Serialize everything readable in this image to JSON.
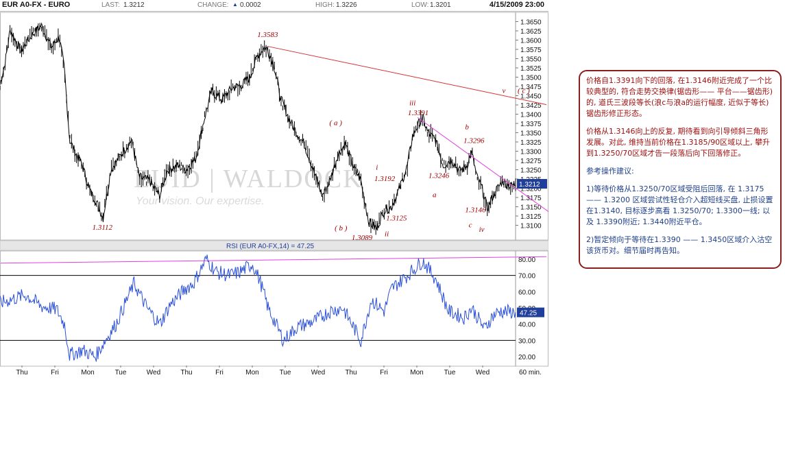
{
  "header": {
    "symbol": "EUR A0-FX - EURO",
    "last_label": "LAST:",
    "last_value": "1.3212",
    "change_label": "CHANGE:",
    "change_value": "0.0002",
    "high_label": "HIGH:",
    "high_value": "1.3226",
    "low_label": "LOW:",
    "low_value": "1.3201",
    "datetime": "4/15/2009 23:00"
  },
  "watermark": {
    "brand": "EUID | WALDOCK",
    "tagline": "Your vision. Our expertise."
  },
  "chart_data": [
    {
      "type": "line",
      "name": "price",
      "yaxis": {
        "min": 1.3075,
        "max": 1.3675,
        "ticks": [
          1.365,
          1.3625,
          1.36,
          1.3575,
          1.355,
          1.3525,
          1.35,
          1.3475,
          1.345,
          1.3425,
          1.34,
          1.3375,
          1.335,
          1.3325,
          1.33,
          1.3275,
          1.325,
          1.3225,
          1.32,
          1.3175,
          1.315,
          1.3125,
          1.31
        ],
        "tick_labels": [
          "1.3650",
          "1.3625",
          "1.3600",
          "1.3575",
          "1.3550",
          "1.3525",
          "1.3500",
          "1.3475",
          "1.3450",
          "1.3425",
          "1.3400",
          "1.3375",
          "1.3350",
          "1.3325",
          "1.3300",
          "1.3275",
          "1.3250",
          "1.3225",
          "1.3200",
          "1.3175",
          "1.3150",
          "1.3125",
          "1.3100"
        ],
        "visible_tick_labels": [
          "1.3650",
          "1.3625",
          "1.3600",
          "1.3575",
          "1.3550",
          "1.3525",
          "1.3500",
          "1.345",
          "1.3425",
          "1.3400",
          "1.3375",
          "1.3350",
          "1.3325",
          "1.3300",
          "1.3275",
          "1.3250",
          "1.3225",
          "1.3200",
          "1.3175",
          "1.3150",
          "1.3125",
          "1.3100"
        ]
      },
      "last_value": 1.3212,
      "last_value_label": "1.3212",
      "trendlines": [
        {
          "from": [
            0.52,
            1.3583
          ],
          "to": [
            1.0,
            1.3448
          ]
        },
        {
          "from": [
            0.81,
            1.3391
          ],
          "to": [
            1.0,
            1.3232
          ]
        }
      ],
      "annotations": [
        {
          "text": "1.3583",
          "x": 0.515,
          "y": 1.3608
        },
        {
          "text": "1.3112",
          "x": 0.195,
          "y": 1.3088
        },
        {
          "text": "( a )",
          "x": 0.655,
          "y": 1.337
        },
        {
          "text": "i",
          "x": 0.745,
          "y": 1.325
        },
        {
          "text": "1.3192",
          "x": 0.742,
          "y": 1.3219
        },
        {
          "text": "( b )",
          "x": 0.665,
          "y": 1.3086
        },
        {
          "text": "1.3089",
          "x": 0.698,
          "y": 1.306
        },
        {
          "text": "1.3125",
          "x": 0.765,
          "y": 1.3113
        },
        {
          "text": "ii",
          "x": 0.762,
          "y": 1.307
        },
        {
          "text": "iii",
          "x": 0.81,
          "y": 1.3424
        },
        {
          "text": "1.3391",
          "x": 0.807,
          "y": 1.3397
        },
        {
          "text": "1.3246",
          "x": 0.847,
          "y": 1.3228
        },
        {
          "text": "a",
          "x": 0.855,
          "y": 1.3176
        },
        {
          "text": "b",
          "x": 0.918,
          "y": 1.3359
        },
        {
          "text": "1.3296",
          "x": 0.915,
          "y": 1.3322
        },
        {
          "text": "1.3146",
          "x": 0.918,
          "y": 1.3135
        },
        {
          "text": "c",
          "x": 0.925,
          "y": 1.3094
        },
        {
          "text": "iv",
          "x": 0.945,
          "y": 1.3082
        },
        {
          "text": "v",
          "x": 0.99,
          "y": 1.3457
        },
        {
          "text": "( c )",
          "x": 1.02,
          "y": 1.3457
        }
      ],
      "x_labels": [
        "Thu",
        "Fri",
        "Mon",
        "Tue",
        "Wed",
        "Thu",
        "Fri",
        "Mon",
        "Tue",
        "Wed",
        "Thu",
        "Fri",
        "Mon",
        "Tue",
        "Wed"
      ],
      "interval_label": "60 min."
    },
    {
      "type": "line",
      "name": "RSI",
      "title": "RSI (EUR A0-FX,14) = 47.25",
      "yaxis": {
        "min": 15,
        "max": 85,
        "ticks": [
          80,
          70,
          60,
          50,
          40,
          30,
          20
        ],
        "tick_labels": [
          "80.00",
          "70.00",
          "60.00",
          "50.00",
          "40.00",
          "30.00",
          "20.00"
        ],
        "reference_lines": [
          70,
          30
        ]
      },
      "last_value": 47.25,
      "last_value_label": "47.25",
      "trendline": {
        "from": [
          0.0,
          77.5
        ],
        "to": [
          1.0,
          81.5
        ]
      },
      "keypoints": [
        {
          "x": 0.0,
          "y": 53
        },
        {
          "x": 0.05,
          "y": 58
        },
        {
          "x": 0.08,
          "y": 51
        },
        {
          "x": 0.11,
          "y": 49
        },
        {
          "x": 0.125,
          "y": 40
        },
        {
          "x": 0.135,
          "y": 21
        },
        {
          "x": 0.16,
          "y": 24
        },
        {
          "x": 0.185,
          "y": 20
        },
        {
          "x": 0.2,
          "y": 28
        },
        {
          "x": 0.225,
          "y": 40
        },
        {
          "x": 0.26,
          "y": 65
        },
        {
          "x": 0.285,
          "y": 50
        },
        {
          "x": 0.31,
          "y": 40
        },
        {
          "x": 0.33,
          "y": 52
        },
        {
          "x": 0.36,
          "y": 62
        },
        {
          "x": 0.375,
          "y": 65
        },
        {
          "x": 0.4,
          "y": 80
        },
        {
          "x": 0.42,
          "y": 72
        },
        {
          "x": 0.445,
          "y": 70
        },
        {
          "x": 0.465,
          "y": 72
        },
        {
          "x": 0.49,
          "y": 77
        },
        {
          "x": 0.505,
          "y": 66
        },
        {
          "x": 0.52,
          "y": 50
        },
        {
          "x": 0.535,
          "y": 40
        },
        {
          "x": 0.55,
          "y": 30
        },
        {
          "x": 0.575,
          "y": 38
        },
        {
          "x": 0.61,
          "y": 42
        },
        {
          "x": 0.64,
          "y": 48
        },
        {
          "x": 0.665,
          "y": 50
        },
        {
          "x": 0.7,
          "y": 30
        },
        {
          "x": 0.72,
          "y": 55
        },
        {
          "x": 0.745,
          "y": 48
        },
        {
          "x": 0.76,
          "y": 62
        },
        {
          "x": 0.79,
          "y": 70
        },
        {
          "x": 0.82,
          "y": 79
        },
        {
          "x": 0.845,
          "y": 68
        },
        {
          "x": 0.87,
          "y": 48
        },
        {
          "x": 0.9,
          "y": 44
        },
        {
          "x": 0.915,
          "y": 50
        },
        {
          "x": 0.94,
          "y": 37
        },
        {
          "x": 0.955,
          "y": 45
        },
        {
          "x": 0.97,
          "y": 48
        },
        {
          "x": 1.0,
          "y": 47.25
        }
      ]
    }
  ],
  "colors": {
    "price_line": "#000000",
    "rsi_line": "#2a4fd8",
    "trendline_red": "#d63333",
    "trendline_magenta": "#e040e0",
    "annotation": "#a00000",
    "last_badge": "#1f3f9a"
  },
  "panel": {
    "para1": "价格自1.3391向下的回落, 在1.3146附近完成了一个比较典型的, 符合走势交换律(锯齿形—— 平台——锯齿形)的, 道氏三波段等长(浪c与浪a的运行幅度, 近似于等长)锯齿形修正形态。",
    "para2": "价格从1.3146向上的反复, 期待看到向引导倾斜三角形发展。对此, 维持当前价格在1.3185/90区域以上, 攀升到1.3250/70区域才告一段落后向下回落修正。",
    "advice_title": "参考操作建议:",
    "advice1": "1)等待价格从1.3250/70区域受阻后回落, 在 1.3175 —— 1.3200 区域尝试性轻仓介入超短线买盘, 止损设置在1.3140, 目标逐步高看 1.3250/70; 1.3300一线; 以及 1.3390附近; 1.3440附近平仓。",
    "advice2": "2)暂定倾向于等待在1.3390 —— 1.3450区域介入沽空该货币对。细节届时再告知。"
  }
}
